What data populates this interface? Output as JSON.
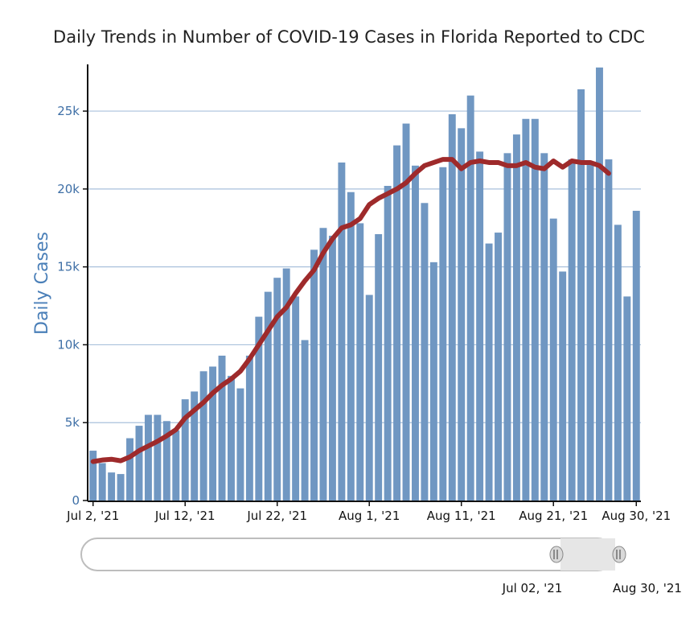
{
  "chart_data": {
    "type": "bar",
    "title": "Daily Trends in Number of COVID-19 Cases in Florida Reported to CDC",
    "ylabel": "Daily Cases",
    "xlabel": "",
    "ylim": [
      0,
      28000
    ],
    "yticks": [
      0,
      5000,
      10000,
      15000,
      20000,
      25000
    ],
    "ytick_labels": [
      "0",
      "5k",
      "10k",
      "15k",
      "20k",
      "25k"
    ],
    "xtick_labels": [
      "Jul 2, '21",
      "Jul 12, '21",
      "Jul 22, '21",
      "Aug 1, '21",
      "Aug 11, '21",
      "Aug 21, '21",
      "Aug 30, '21"
    ],
    "xtick_index": [
      0,
      10,
      20,
      30,
      40,
      50,
      59
    ],
    "grid": true,
    "series": [
      {
        "type": "bar",
        "color": "#7097c2",
        "values": [
          3200,
          2400,
          1800,
          1700,
          4000,
          4800,
          5500,
          5500,
          5100,
          4500,
          6500,
          7000,
          8300,
          8600,
          9300,
          8000,
          7200,
          9300,
          11800,
          13400,
          14300,
          14900,
          13100,
          10300,
          16100,
          17500,
          17000,
          21700,
          19800,
          17800,
          13200,
          17100,
          20200,
          22800,
          24200,
          21500,
          19100,
          15300,
          21400,
          24800,
          23900,
          26000,
          22400,
          16500,
          17200,
          22300,
          23500,
          24500,
          24500,
          22300,
          18100,
          14700,
          21900,
          26400,
          21600,
          27800,
          21900,
          17700,
          13100,
          18600
        ]
      },
      {
        "type": "line",
        "color": "#9e2a2b",
        "values": [
          2500,
          2600,
          2650,
          2550,
          2800,
          3200,
          3500,
          3800,
          4150,
          4550,
          5300,
          5800,
          6300,
          6900,
          7400,
          7800,
          8300,
          9100,
          10000,
          10900,
          11800,
          12400,
          13300,
          14100,
          14800,
          15900,
          16800,
          17500,
          17700,
          18100,
          19000,
          19400,
          19700,
          20000,
          20400,
          21000,
          21500,
          21700,
          21900,
          21900,
          21300,
          21700,
          21800,
          21700,
          21700,
          21500,
          21500,
          21700,
          21400,
          21300,
          21800,
          21400,
          21800,
          21700,
          21700,
          21500,
          21000
        ]
      }
    ],
    "range_selector": {
      "start_label": "Jul 02, '21",
      "end_label": "Aug 30, '21"
    }
  }
}
